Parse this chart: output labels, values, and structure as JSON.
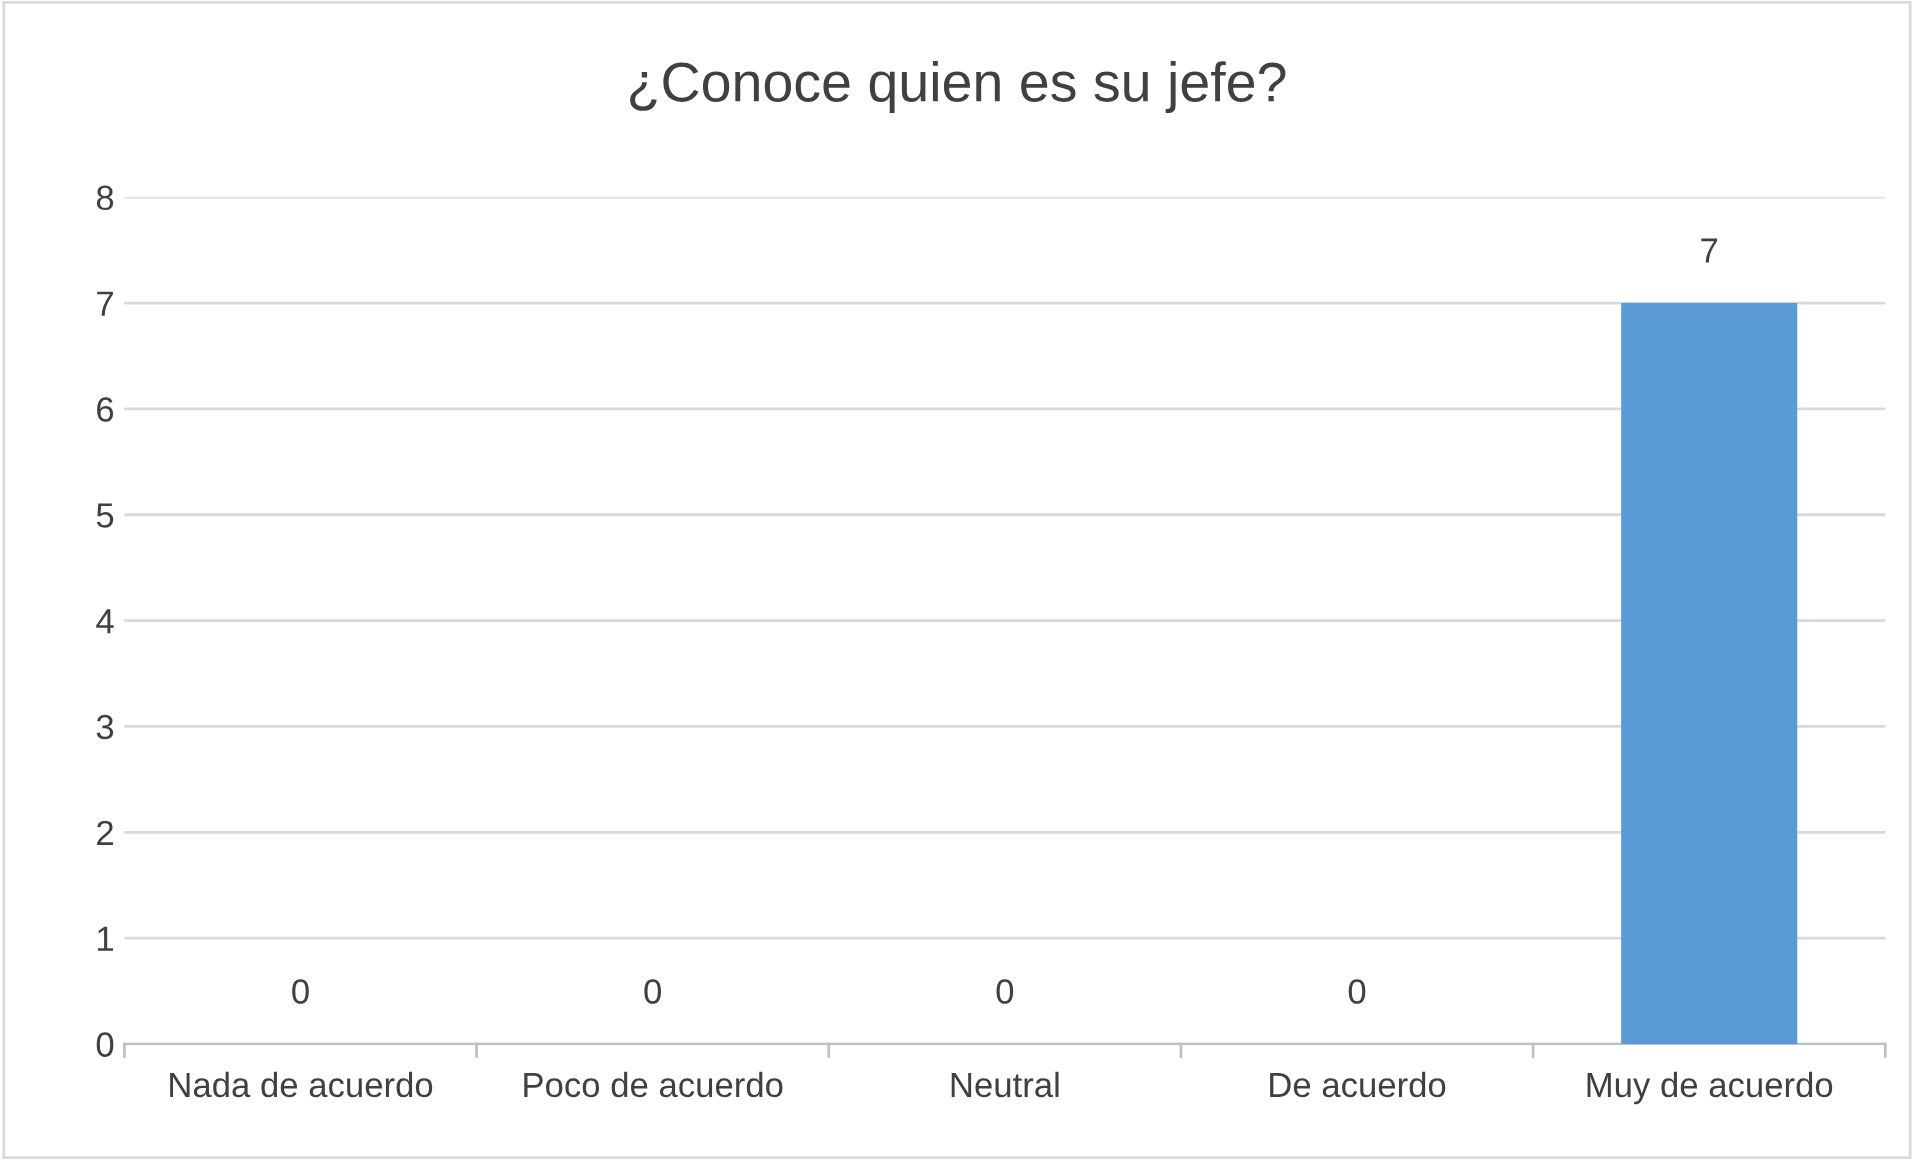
{
  "chart_data": {
    "type": "bar",
    "title": "¿Conoce quien es su jefe?",
    "categories": [
      "Nada de acuerdo",
      "Poco de acuerdo",
      "Neutral",
      "De acuerdo",
      "Muy de acuerdo"
    ],
    "values": [
      0,
      0,
      0,
      0,
      7
    ],
    "color": "#5b9bd5",
    "ylim": [
      0,
      8
    ],
    "yticks": [
      0,
      1,
      2,
      3,
      4,
      5,
      6,
      7,
      8
    ],
    "grid": "y",
    "data_labels": true
  }
}
